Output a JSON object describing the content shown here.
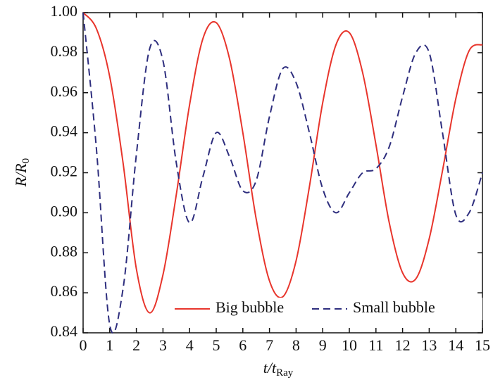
{
  "chart_data": {
    "type": "line",
    "x_label": [
      "t/t",
      "Ray"
    ],
    "y_label": [
      "R/R",
      "0"
    ],
    "x": [
      0,
      0.5,
      1,
      1.5,
      2,
      2.5,
      3,
      3.5,
      4,
      4.5,
      5,
      5.5,
      6,
      6.5,
      7,
      7.5,
      8,
      8.5,
      9,
      9.5,
      10,
      10.5,
      11,
      11.5,
      12,
      12.5,
      13,
      13.5,
      14,
      14.5,
      15
    ],
    "series": [
      {
        "name": "Big bubble",
        "color": "#e8352c",
        "linestyle": "solid",
        "values": [
          1.0,
          0.992,
          0.968,
          0.925,
          0.872,
          0.85,
          0.869,
          0.909,
          0.954,
          0.987,
          0.995,
          0.977,
          0.94,
          0.897,
          0.866,
          0.858,
          0.876,
          0.913,
          0.955,
          0.984,
          0.99,
          0.97,
          0.934,
          0.895,
          0.87,
          0.867,
          0.887,
          0.921,
          0.957,
          0.981,
          0.984
        ]
      },
      {
        "name": "Small bubble",
        "color": "#2e2e7e",
        "linestyle": "dashed",
        "values": [
          1.0,
          0.932,
          0.844,
          0.862,
          0.929,
          0.982,
          0.976,
          0.925,
          0.895,
          0.918,
          0.94,
          0.928,
          0.911,
          0.916,
          0.948,
          0.972,
          0.965,
          0.94,
          0.912,
          0.9,
          0.91,
          0.92,
          0.922,
          0.933,
          0.958,
          0.98,
          0.98,
          0.94,
          0.899,
          0.9,
          0.92
        ]
      }
    ],
    "xlim": [
      0,
      15
    ],
    "xticks": [
      0,
      1,
      2,
      3,
      4,
      5,
      6,
      7,
      8,
      9,
      10,
      11,
      12,
      13,
      14,
      15
    ],
    "ylim": [
      0.84,
      1.0
    ],
    "yticks": [
      0.84,
      0.86,
      0.88,
      {
        "value": 0.9,
        "label": "0.90"
      },
      0.92,
      0.94,
      0.96,
      0.98,
      {
        "value": 1,
        "label": "1.00"
      }
    ],
    "grid": false,
    "legend": "lower right"
  }
}
